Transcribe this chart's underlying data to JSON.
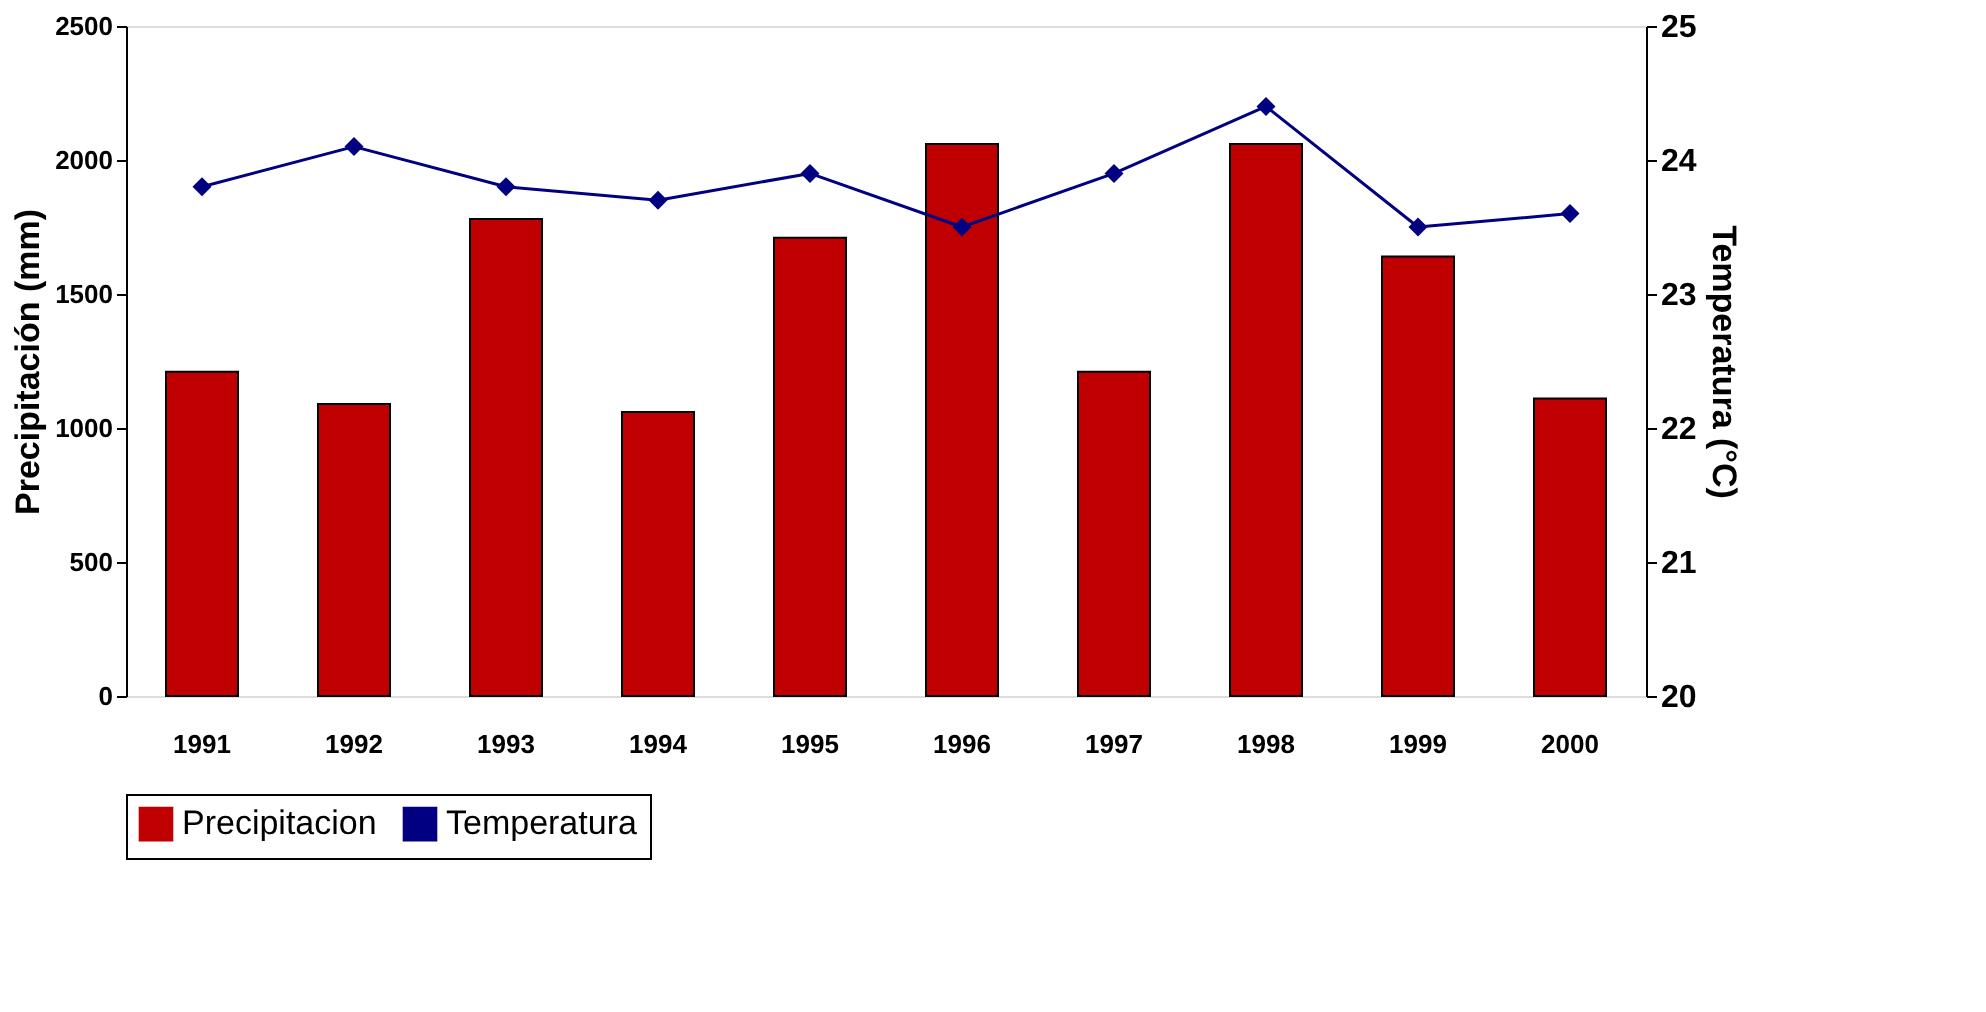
{
  "chart_data": {
    "type": "bar",
    "xlabel": null,
    "ylabel": "Precipitación (mm)",
    "y2label": "Temperatura (°C)",
    "categories": [
      "1991",
      "1992",
      "1993",
      "1994",
      "1995",
      "1996",
      "1997",
      "1998",
      "1999",
      "2000"
    ],
    "series": [
      {
        "name": "Precipitacion",
        "color": "#c00000",
        "values": [
          1210,
          1090,
          1780,
          1060,
          1710,
          2060,
          1210,
          2060,
          1640,
          1110
        ]
      },
      {
        "name": "Temperatura",
        "type": "line",
        "axis": "y2",
        "color": "#000080",
        "marker": "diamond",
        "values": [
          23.8,
          24.1,
          23.8,
          23.7,
          23.9,
          23.5,
          23.9,
          24.4,
          23.5,
          23.6
        ]
      }
    ],
    "ylim": [
      0,
      2500
    ],
    "yticks": [
      0,
      500,
      1000,
      1500,
      2000,
      2500
    ],
    "y2lim": [
      20,
      25
    ],
    "y2ticks": [
      20,
      21,
      22,
      23,
      24,
      25
    ],
    "grid": false,
    "legend": "bottom"
  }
}
